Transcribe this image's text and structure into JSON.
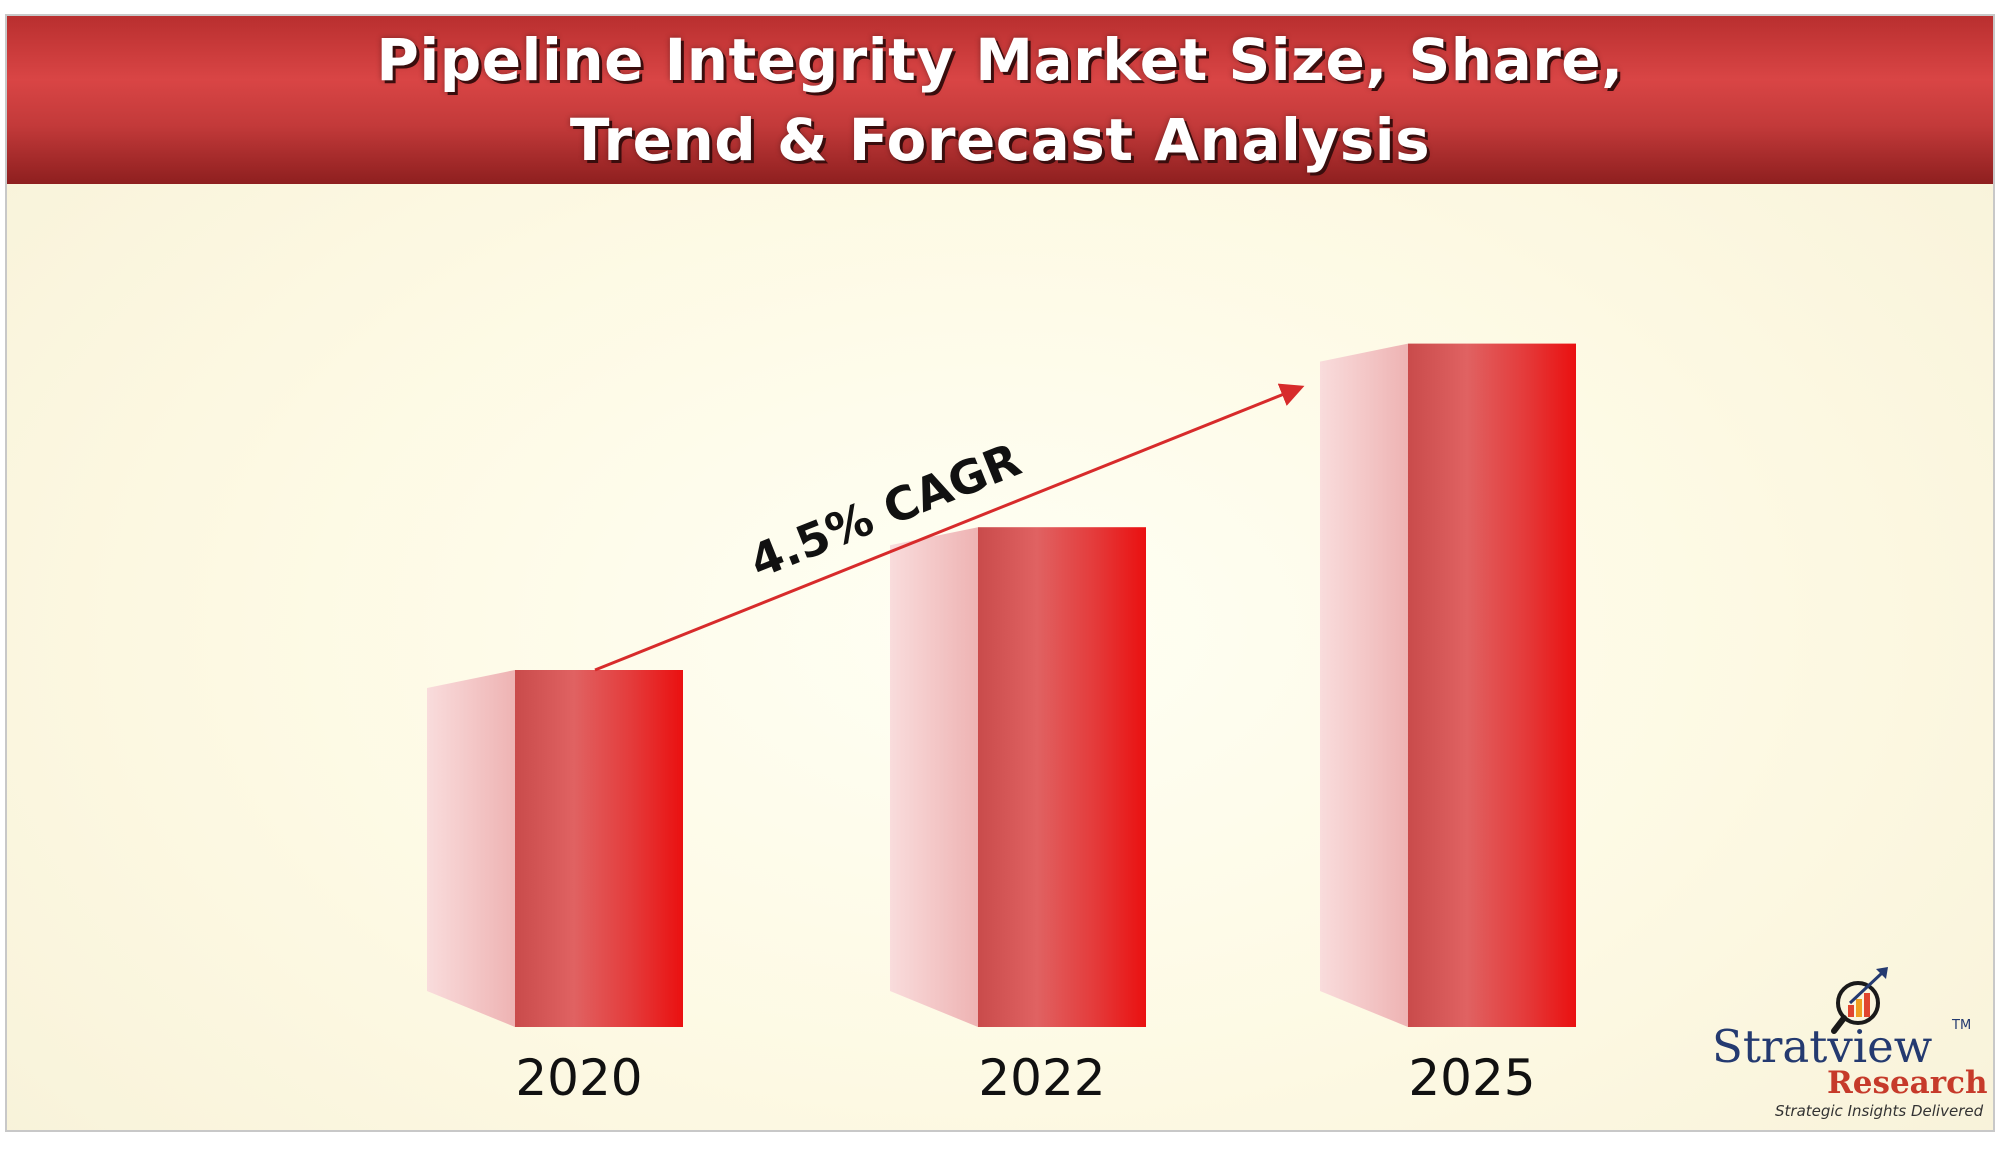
{
  "title": {
    "line1": "Pipeline Integrity Market Size, Share,",
    "line2": "Trend & Forecast Analysis"
  },
  "chart_data": {
    "type": "bar",
    "title": "Pipeline Integrity Market Size, Share, Trend & Forecast Analysis",
    "categories": [
      "2020",
      "2022",
      "2025"
    ],
    "values": [
      35,
      49,
      67
    ],
    "annotation": "4.5% CAGR",
    "colors": {
      "bar_front": "#e02020",
      "bar_side": "#f4c2c2",
      "arrow": "#d72b2b"
    }
  },
  "logo": {
    "name": "Stratview",
    "tm": "TM",
    "research": "Research",
    "tagline": "Strategic Insights Delivered"
  }
}
